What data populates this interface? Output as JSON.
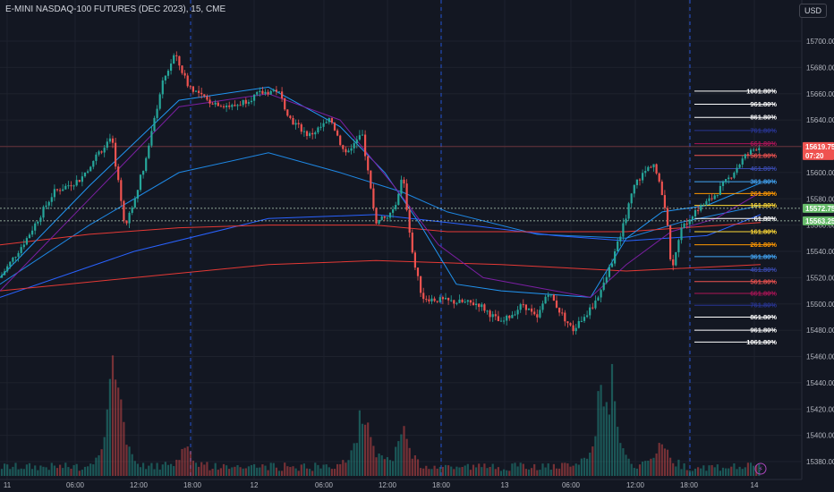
{
  "symbol_title": "E-MINI NASDAQ-100 FUTURES (DEC 2023), 15, CME",
  "currency_button": "USD",
  "badge_icon": "lightning-icon",
  "colors": {
    "background": "#131722",
    "up": "#26a69a",
    "down": "#ef5350",
    "grid": "#1e222d",
    "session_line": "#2962ff",
    "text": "#b2b5be"
  },
  "chart_data": {
    "type": "candlestick",
    "title": "E-MINI NASDAQ-100 FUTURES (DEC 2023), 15, CME",
    "y_ticks": [
      15380,
      15400,
      15420,
      15440,
      15460,
      15480,
      15500,
      15520,
      15540,
      15560,
      15580,
      15600,
      15620,
      15640,
      15660,
      15680,
      15700
    ],
    "ylim": [
      15375,
      15725
    ],
    "x_ticks": [
      "11",
      "06:00",
      "12:00",
      "18:00",
      "12",
      "06:00",
      "12:00",
      "18:00",
      "13",
      "06:00",
      "12:00",
      "18:00",
      "14"
    ],
    "price_path": [
      [
        0,
        15520
      ],
      [
        30,
        15550
      ],
      [
        60,
        15585
      ],
      [
        90,
        15595
      ],
      [
        110,
        15615
      ],
      [
        125,
        15625
      ],
      [
        140,
        15558
      ],
      [
        150,
        15580
      ],
      [
        165,
        15615
      ],
      [
        180,
        15665
      ],
      [
        195,
        15690
      ],
      [
        210,
        15667
      ],
      [
        230,
        15655
      ],
      [
        260,
        15650
      ],
      [
        290,
        15660
      ],
      [
        310,
        15663
      ],
      [
        325,
        15640
      ],
      [
        345,
        15628
      ],
      [
        370,
        15640
      ],
      [
        385,
        15615
      ],
      [
        405,
        15628
      ],
      [
        420,
        15562
      ],
      [
        440,
        15570
      ],
      [
        450,
        15598
      ],
      [
        462,
        15533
      ],
      [
        472,
        15505
      ],
      [
        500,
        15502
      ],
      [
        535,
        15500
      ],
      [
        560,
        15485
      ],
      [
        585,
        15500
      ],
      [
        600,
        15488
      ],
      [
        612,
        15510
      ],
      [
        625,
        15495
      ],
      [
        640,
        15480
      ],
      [
        662,
        15498
      ],
      [
        675,
        15515
      ],
      [
        690,
        15545
      ],
      [
        710,
        15592
      ],
      [
        730,
        15608
      ],
      [
        745,
        15570
      ],
      [
        750,
        15525
      ],
      [
        760,
        15555
      ],
      [
        775,
        15570
      ],
      [
        795,
        15580
      ],
      [
        815,
        15596
      ],
      [
        832,
        15612
      ],
      [
        845,
        15619
      ],
      [
        852,
        15619.75
      ]
    ],
    "volume_ylim": [
      0,
      140
    ],
    "volume_peaks": [
      {
        "x": 125,
        "v": 120
      },
      {
        "x": 133,
        "v": 90
      },
      {
        "x": 208,
        "v": 40
      },
      {
        "x": 402,
        "v": 65
      },
      {
        "x": 412,
        "v": 50
      },
      {
        "x": 450,
        "v": 70
      },
      {
        "x": 670,
        "v": 100
      },
      {
        "x": 684,
        "v": 120
      },
      {
        "x": 740,
        "v": 50
      }
    ],
    "moving_averages": [
      {
        "color": "#1e88e5",
        "points": [
          [
            0,
            15515
          ],
          [
            100,
            15560
          ],
          [
            200,
            15600
          ],
          [
            300,
            15615
          ],
          [
            380,
            15600
          ],
          [
            450,
            15585
          ],
          [
            500,
            15570
          ],
          [
            600,
            15553
          ],
          [
            700,
            15550
          ],
          [
            760,
            15562
          ],
          [
            850,
            15575
          ]
        ]
      },
      {
        "color": "#2962ff",
        "points": [
          [
            0,
            15505
          ],
          [
            150,
            15540
          ],
          [
            300,
            15565
          ],
          [
            420,
            15568
          ],
          [
            500,
            15562
          ],
          [
            620,
            15552
          ],
          [
            700,
            15548
          ],
          [
            790,
            15552
          ],
          [
            850,
            15568
          ]
        ]
      },
      {
        "color": "#e53935",
        "points": [
          [
            0,
            15545
          ],
          [
            100,
            15553
          ],
          [
            200,
            15558
          ],
          [
            300,
            15560
          ],
          [
            420,
            15560
          ],
          [
            500,
            15555
          ],
          [
            600,
            15555
          ],
          [
            700,
            15555
          ],
          [
            850,
            15562
          ]
        ]
      },
      {
        "color": "#e53935",
        "points": [
          [
            0,
            15510
          ],
          [
            150,
            15520
          ],
          [
            300,
            15530
          ],
          [
            420,
            15533
          ],
          [
            560,
            15530
          ],
          [
            700,
            15525
          ],
          [
            850,
            15530
          ]
        ]
      },
      {
        "color": "#2196f3",
        "points": [
          [
            0,
            15520
          ],
          [
            100,
            15590
          ],
          [
            200,
            15655
          ],
          [
            300,
            15665
          ],
          [
            380,
            15635
          ],
          [
            430,
            15600
          ],
          [
            470,
            15560
          ],
          [
            510,
            15515
          ],
          [
            560,
            15510
          ],
          [
            620,
            15507
          ],
          [
            660,
            15505
          ],
          [
            700,
            15550
          ],
          [
            740,
            15570
          ],
          [
            790,
            15575
          ],
          [
            850,
            15592
          ]
        ]
      },
      {
        "color": "#7b1fa2",
        "points": [
          [
            0,
            15510
          ],
          [
            100,
            15580
          ],
          [
            200,
            15650
          ],
          [
            300,
            15660
          ],
          [
            380,
            15640
          ],
          [
            440,
            15590
          ],
          [
            490,
            15545
          ],
          [
            540,
            15520
          ],
          [
            620,
            15510
          ],
          [
            660,
            15505
          ],
          [
            700,
            15530
          ],
          [
            750,
            15555
          ],
          [
            800,
            15565
          ],
          [
            850,
            15585
          ]
        ]
      }
    ],
    "price_labels": [
      {
        "value": 15619.75,
        "text": "15619.75",
        "sub": "07:20",
        "color": "#ef5350"
      },
      {
        "value": 15572.75,
        "text": "15572.75",
        "color": "#66bb6a"
      },
      {
        "value": 15563.25,
        "text": "15563.25",
        "color": "#66bb6a"
      }
    ],
    "fib_levels_upper": [
      {
        "label": "1061.80%",
        "value": 15662,
        "color": "#ffffff"
      },
      {
        "label": "961.80%",
        "value": 15652,
        "color": "#ffffff"
      },
      {
        "label": "861.80%",
        "value": 15642,
        "color": "#ffffff"
      },
      {
        "label": "761.80%",
        "value": 15632,
        "color": "#283593"
      },
      {
        "label": "661.80%",
        "value": 15622,
        "color": "#ad1457"
      },
      {
        "label": "561.80%",
        "value": 15613,
        "color": "#ef5350"
      },
      {
        "label": "461.80%",
        "value": 15603,
        "color": "#3949ab"
      },
      {
        "label": "361.80%",
        "value": 15593,
        "color": "#42a5f5"
      },
      {
        "label": "261.80%",
        "value": 15584,
        "color": "#ff9800"
      },
      {
        "label": "161.80%",
        "value": 15575,
        "color": "#fdd835"
      },
      {
        "label": "61.80%",
        "value": 15565,
        "color": "#ffffff"
      }
    ],
    "fib_levels_lower": [
      {
        "label": "161.80%",
        "value": 15555,
        "color": "#fdd835"
      },
      {
        "label": "261.80%",
        "value": 15545,
        "color": "#ff9800"
      },
      {
        "label": "361.80%",
        "value": 15536,
        "color": "#42a5f5"
      },
      {
        "label": "461.80%",
        "value": 15526,
        "color": "#3949ab"
      },
      {
        "label": "561.80%",
        "value": 15517,
        "color": "#ef5350"
      },
      {
        "label": "661.80%",
        "value": 15508,
        "color": "#ad1457"
      },
      {
        "label": "761.80%",
        "value": 15499,
        "color": "#283593"
      },
      {
        "label": "861.80%",
        "value": 15490,
        "color": "#ffffff"
      },
      {
        "label": "961.80%",
        "value": 15480,
        "color": "#ffffff"
      },
      {
        "label": "1061.80%",
        "value": 15471,
        "color": "#ffffff"
      }
    ]
  }
}
